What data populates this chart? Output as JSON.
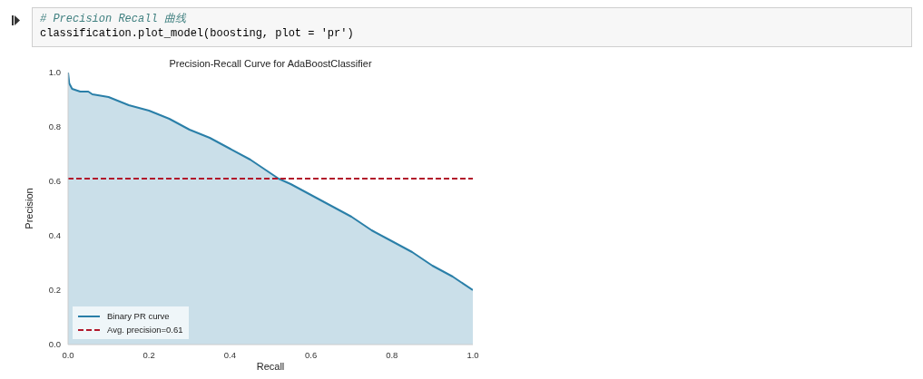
{
  "chart_data": {
    "type": "area",
    "title": "Precision-Recall Curve for AdaBoostClassifier",
    "xlabel": "Recall",
    "ylabel": "Precision",
    "annotations": [
      "# Precision Recall 曲线",
      "classification.plot_model(boosting, plot = 'pr')"
    ],
    "x": [
      0,
      0.003,
      0.01,
      0.03,
      0.05,
      0.06,
      0.1,
      0.15,
      0.2,
      0.25,
      0.3,
      0.35,
      0.4,
      0.45,
      0.48,
      0.52,
      0.55,
      0.6,
      0.65,
      0.7,
      0.75,
      0.8,
      0.85,
      0.9,
      0.95,
      1.0
    ],
    "series": [
      {
        "name": "Binary PR curve",
        "color": "#2a7fa8",
        "values": [
          1.0,
          0.96,
          0.94,
          0.93,
          0.93,
          0.92,
          0.91,
          0.88,
          0.86,
          0.83,
          0.79,
          0.76,
          0.72,
          0.68,
          0.65,
          0.61,
          0.59,
          0.55,
          0.51,
          0.47,
          0.42,
          0.38,
          0.34,
          0.29,
          0.25,
          0.2
        ]
      }
    ],
    "ref_lines": [
      {
        "axis": "y",
        "value": 0.61,
        "label": "Avg. precision=0.61",
        "color": "#b2182b",
        "line_style": "dashed"
      }
    ],
    "xlim": [
      0,
      1
    ],
    "ylim": [
      0,
      1
    ],
    "xticks": [
      {
        "value": 0,
        "label": "0.0"
      },
      0.2,
      0.4,
      0.6,
      0.8,
      {
        "value": 1,
        "label": "1.0"
      }
    ],
    "yticks": [
      {
        "value": 0,
        "label": "0.0"
      },
      0.2,
      0.4,
      0.6,
      0.8,
      {
        "value": 1,
        "label": "1.0"
      }
    ],
    "grid": false,
    "legend": "bottom left",
    "marker": "none",
    "line_style": "solid"
  }
}
